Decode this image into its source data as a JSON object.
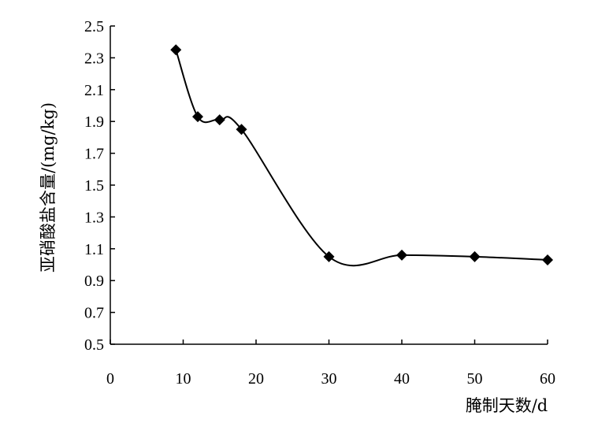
{
  "chart_data": {
    "type": "line",
    "title": "",
    "xlabel": "腌制天数/d",
    "ylabel": "亚硝酸盐含量/(mg/kg)",
    "xlim": [
      0,
      60
    ],
    "ylim": [
      0.5,
      2.5
    ],
    "x_ticks": [
      0,
      10,
      20,
      30,
      40,
      50,
      60
    ],
    "y_ticks": [
      0.5,
      0.7,
      0.9,
      1.1,
      1.3,
      1.5,
      1.7,
      1.9,
      2.1,
      2.3,
      2.5
    ],
    "x_tick_labels": [
      "0",
      "10",
      "20",
      "30",
      "40",
      "50",
      "60"
    ],
    "y_tick_labels": [
      "0.5",
      "0.7",
      "0.9",
      "1.1",
      "1.3",
      "1.5",
      "1.7",
      "1.9",
      "2.1",
      "2.3",
      "2.5"
    ],
    "series": [
      {
        "marker": "diamond",
        "smooth": true,
        "color": "#000000",
        "x": [
          9,
          12,
          15,
          18,
          30,
          40,
          50,
          60
        ],
        "y": [
          2.35,
          1.93,
          1.91,
          1.85,
          1.05,
          1.06,
          1.05,
          1.03
        ]
      }
    ],
    "grid": false,
    "legend": "none"
  }
}
